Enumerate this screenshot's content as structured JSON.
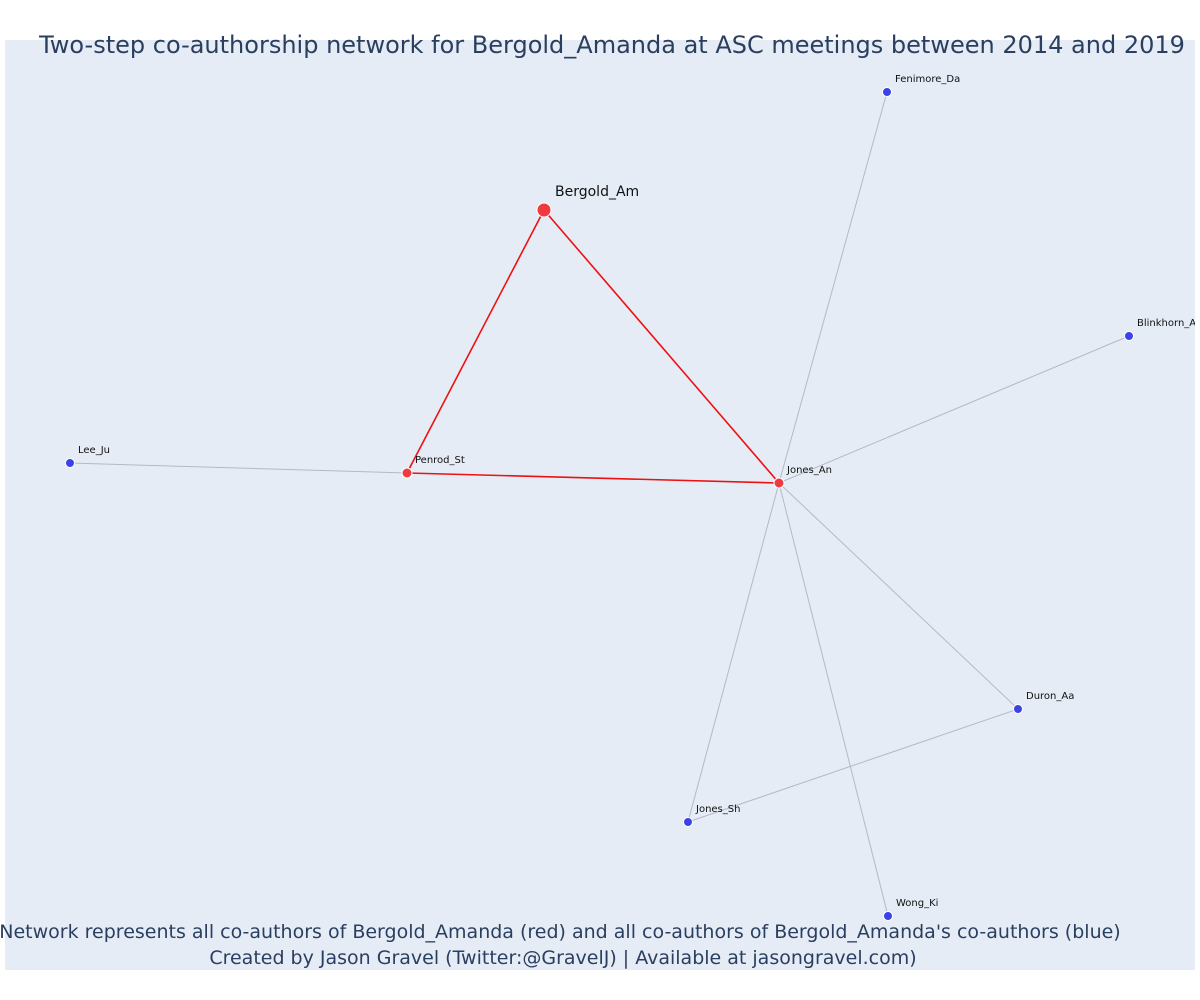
{
  "title": "Two-step co-authorship network for Bergold_Amanda at ASC meetings between 2014 and 2019",
  "footer": {
    "line1": "Network represents all co-authors of Bergold_Amanda (red) and all co-authors of Bergold_Amanda's co-authors (blue)",
    "line2": "Created by Jason Gravel (Twitter:@GravelJ) | Available at jasongravel.com)"
  },
  "colors": {
    "plot_bg": "#e5ecf6",
    "direct_node": "#ef3a3f",
    "second_node": "#3c43e6",
    "direct_edge": "#ee1111",
    "second_edge": "#b4b8c8",
    "text": "#2a3f5f"
  },
  "nodes": [
    {
      "id": "Bergold_Am",
      "label": "Bergold_Am",
      "group": "ego"
    },
    {
      "id": "Penrod_St",
      "label": "Penrod_St",
      "group": "direct"
    },
    {
      "id": "Jones_An",
      "label": "Jones_An",
      "group": "direct"
    },
    {
      "id": "Lee_Ju",
      "label": "Lee_Ju",
      "group": "second"
    },
    {
      "id": "Fenimore_Da",
      "label": "Fenimore_Da",
      "group": "second"
    },
    {
      "id": "Blinkhorn_As",
      "label": "Blinkhorn_As",
      "group": "second"
    },
    {
      "id": "Duron_Aa",
      "label": "Duron_Aa",
      "group": "second"
    },
    {
      "id": "Jones_Sh",
      "label": "Jones_Sh",
      "group": "second"
    },
    {
      "id": "Wong_Ki",
      "label": "Wong_Ki",
      "group": "second"
    }
  ],
  "edges": [
    {
      "source": "Bergold_Am",
      "target": "Penrod_St",
      "type": "direct"
    },
    {
      "source": "Bergold_Am",
      "target": "Jones_An",
      "type": "direct"
    },
    {
      "source": "Penrod_St",
      "target": "Jones_An",
      "type": "direct"
    },
    {
      "source": "Penrod_St",
      "target": "Lee_Ju",
      "type": "second"
    },
    {
      "source": "Jones_An",
      "target": "Fenimore_Da",
      "type": "second"
    },
    {
      "source": "Jones_An",
      "target": "Blinkhorn_As",
      "type": "second"
    },
    {
      "source": "Jones_An",
      "target": "Duron_Aa",
      "type": "second"
    },
    {
      "source": "Jones_An",
      "target": "Jones_Sh",
      "type": "second"
    },
    {
      "source": "Jones_An",
      "target": "Wong_Ki",
      "type": "second"
    },
    {
      "source": "Duron_Aa",
      "target": "Jones_Sh",
      "type": "second"
    }
  ]
}
